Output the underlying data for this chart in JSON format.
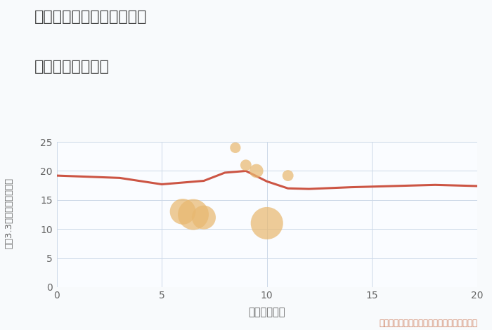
{
  "title_line1": "兵庫県姫路市大津区新町の",
  "title_line2": "駅距離別土地価格",
  "xlabel": "駅距離（分）",
  "ylabel": "坪（3.3㎡）単価（万円）",
  "xlim": [
    0,
    20
  ],
  "ylim": [
    0,
    25
  ],
  "xticks": [
    0,
    5,
    10,
    15,
    20
  ],
  "yticks": [
    0,
    5,
    10,
    15,
    20,
    25
  ],
  "bg_color": "#f8fafc",
  "plot_bg_color": "#fafcff",
  "grid_color": "#ccd8e8",
  "line_x": [
    0,
    3,
    5,
    7,
    8,
    9,
    10,
    11,
    12,
    14,
    18,
    20
  ],
  "line_y": [
    19.2,
    18.8,
    17.7,
    18.3,
    19.7,
    20.0,
    18.2,
    17.0,
    16.9,
    17.2,
    17.6,
    17.4
  ],
  "line_color": "#cc5544",
  "line_width": 2.2,
  "scatter_x": [
    6.0,
    6.5,
    7.0,
    8.5,
    9.0,
    9.5,
    10.0,
    11.0
  ],
  "scatter_y": [
    13.0,
    12.5,
    12.0,
    24.0,
    21.0,
    20.0,
    11.0,
    19.2
  ],
  "scatter_sizes": [
    700,
    1000,
    600,
    120,
    130,
    200,
    1100,
    130
  ],
  "scatter_color": "#e8b870",
  "scatter_alpha": 0.72,
  "annotation": "円の大きさは、取引のあった物件面積を示す",
  "annotation_color": "#cc7755",
  "annotation_fontsize": 8.5,
  "title_color": "#444444",
  "title_fontsize": 16,
  "axis_label_color": "#666666",
  "tick_color": "#666666",
  "tick_fontsize": 10
}
